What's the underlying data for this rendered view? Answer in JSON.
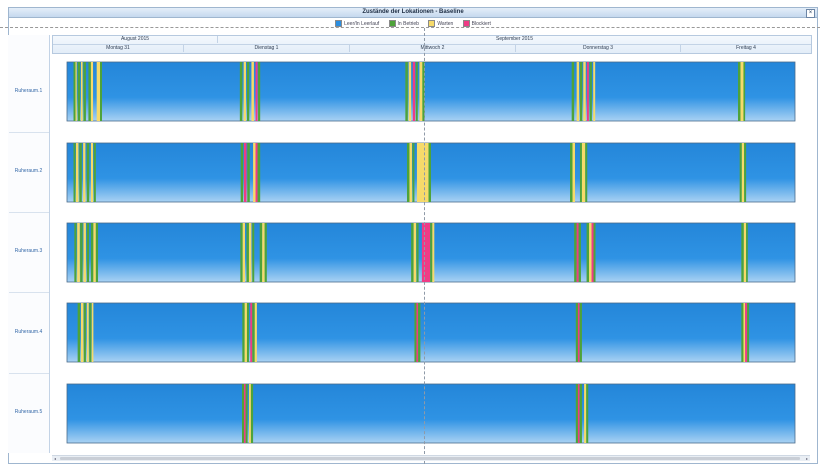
{
  "window": {
    "title": "Zustände der Lokationen - Baseline",
    "close_label": "×"
  },
  "legend": [
    {
      "label": "Leer/In Leerlauf",
      "color": "#2b8ee0"
    },
    {
      "label": "In Betrieb",
      "color": "#4ea33a"
    },
    {
      "label": "Warten",
      "color": "#f6da6a"
    },
    {
      "label": "Blockiert",
      "color": "#ef3b86"
    }
  ],
  "header": {
    "months": [
      "August 2015",
      "September 2015"
    ],
    "days": [
      "Montag 31",
      "Dienstag 1",
      "Mittwoch 2",
      "Donnerstag 3",
      "Freitag 4"
    ]
  },
  "scroll": {
    "left_arrow": "◂",
    "right_arrow": "▸"
  },
  "chart_data": {
    "type": "gantt",
    "title": "Zustände der Lokationen - Baseline",
    "x_unit": "Tag (Montag 31 = 0)",
    "x_range": [
      -0.13,
      4.45
    ],
    "states": [
      "Leer/In Leerlauf",
      "In Betrieb",
      "Warten",
      "Blockiert"
    ],
    "colors": {
      "Leer/In Leerlauf": "#2b8ee0",
      "In Betrieb": "#4ea33a",
      "Warten": "#f6da6a",
      "Blockiert": "#ef3b86"
    },
    "rows": [
      {
        "name": "Ruheraum.1",
        "segments": [
          [
            0.0,
            0.012,
            "In Betrieb"
          ],
          [
            0.012,
            0.018,
            "Warten"
          ],
          [
            0.025,
            0.04,
            "In Betrieb"
          ],
          [
            0.045,
            0.055,
            "Warten"
          ],
          [
            0.06,
            0.075,
            "In Betrieb"
          ],
          [
            0.09,
            0.105,
            "In Betrieb"
          ],
          [
            0.105,
            0.118,
            "Warten"
          ],
          [
            0.14,
            0.16,
            "Warten"
          ],
          [
            0.16,
            0.172,
            "In Betrieb"
          ],
          [
            1.005,
            1.02,
            "In Betrieb"
          ],
          [
            1.028,
            1.042,
            "Warten"
          ],
          [
            1.048,
            1.062,
            "In Betrieb"
          ],
          [
            1.075,
            1.09,
            "Warten"
          ],
          [
            1.1,
            1.112,
            "Blockiert"
          ],
          [
            1.115,
            1.128,
            "In Betrieb"
          ],
          [
            2.005,
            2.02,
            "In Betrieb"
          ],
          [
            2.025,
            2.04,
            "Warten"
          ],
          [
            2.05,
            2.064,
            "Blockiert"
          ],
          [
            2.068,
            2.08,
            "In Betrieb"
          ],
          [
            2.09,
            2.108,
            "Warten"
          ],
          [
            2.108,
            2.122,
            "In Betrieb"
          ],
          [
            3.01,
            3.025,
            "In Betrieb"
          ],
          [
            3.04,
            3.055,
            "Warten"
          ],
          [
            3.06,
            3.074,
            "In Betrieb"
          ],
          [
            3.08,
            3.095,
            "Warten"
          ],
          [
            3.102,
            3.114,
            "Blockiert"
          ],
          [
            3.118,
            3.132,
            "In Betrieb"
          ],
          [
            3.14,
            3.152,
            "Warten"
          ],
          [
            4.015,
            4.03,
            "In Betrieb"
          ],
          [
            4.03,
            4.048,
            "Warten"
          ],
          [
            4.048,
            4.058,
            "In Betrieb"
          ]
        ]
      },
      {
        "name": "Ruheraum.2",
        "segments": [
          [
            0.0,
            0.012,
            "In Betrieb"
          ],
          [
            0.015,
            0.03,
            "Warten"
          ],
          [
            0.035,
            0.05,
            "In Betrieb"
          ],
          [
            0.058,
            0.072,
            "Warten"
          ],
          [
            0.08,
            0.095,
            "In Betrieb"
          ],
          [
            0.105,
            0.118,
            "Warten"
          ],
          [
            0.122,
            0.135,
            "In Betrieb"
          ],
          [
            1.01,
            1.025,
            "In Betrieb"
          ],
          [
            1.03,
            1.045,
            "Blockiert"
          ],
          [
            1.05,
            1.065,
            "In Betrieb"
          ],
          [
            1.085,
            1.1,
            "Warten"
          ],
          [
            1.1,
            1.112,
            "Blockiert"
          ],
          [
            1.112,
            1.128,
            "In Betrieb"
          ],
          [
            2.015,
            2.03,
            "In Betrieb"
          ],
          [
            2.03,
            2.045,
            "Warten"
          ],
          [
            2.048,
            2.06,
            "In Betrieb"
          ],
          [
            2.075,
            2.145,
            "Warten"
          ],
          [
            2.145,
            2.16,
            "In Betrieb"
          ],
          [
            3.0,
            3.015,
            "In Betrieb"
          ],
          [
            3.015,
            3.03,
            "Warten"
          ],
          [
            3.06,
            3.072,
            "In Betrieb"
          ],
          [
            3.072,
            3.092,
            "Warten"
          ],
          [
            3.092,
            3.104,
            "In Betrieb"
          ],
          [
            4.025,
            4.038,
            "In Betrieb"
          ],
          [
            4.038,
            4.052,
            "Warten"
          ],
          [
            4.052,
            4.064,
            "In Betrieb"
          ]
        ]
      },
      {
        "name": "Ruheraum.3",
        "segments": [
          [
            0.005,
            0.018,
            "In Betrieb"
          ],
          [
            0.022,
            0.038,
            "Warten"
          ],
          [
            0.04,
            0.055,
            "In Betrieb"
          ],
          [
            0.06,
            0.075,
            "Warten"
          ],
          [
            0.08,
            0.094,
            "In Betrieb"
          ],
          [
            0.105,
            0.12,
            "In Betrieb"
          ],
          [
            0.12,
            0.135,
            "Warten"
          ],
          [
            0.135,
            0.148,
            "In Betrieb"
          ],
          [
            1.008,
            1.022,
            "In Betrieb"
          ],
          [
            1.022,
            1.036,
            "Warten"
          ],
          [
            1.045,
            1.06,
            "In Betrieb"
          ],
          [
            1.06,
            1.075,
            "Warten"
          ],
          [
            1.08,
            1.092,
            "In Betrieb"
          ],
          [
            1.125,
            1.14,
            "In Betrieb"
          ],
          [
            1.14,
            1.155,
            "Warten"
          ],
          [
            1.155,
            1.168,
            "In Betrieb"
          ],
          [
            2.04,
            2.055,
            "In Betrieb"
          ],
          [
            2.055,
            2.07,
            "Warten"
          ],
          [
            2.072,
            2.085,
            "In Betrieb"
          ],
          [
            2.105,
            2.155,
            "Blockiert"
          ],
          [
            2.155,
            2.168,
            "In Betrieb"
          ],
          [
            2.168,
            2.18,
            "Warten"
          ],
          [
            3.025,
            3.04,
            "In Betrieb"
          ],
          [
            3.04,
            3.052,
            "Blockiert"
          ],
          [
            3.052,
            3.066,
            "In Betrieb"
          ],
          [
            3.1,
            3.115,
            "In Betrieb"
          ],
          [
            3.115,
            3.13,
            "Warten"
          ],
          [
            3.13,
            3.142,
            "Blockiert"
          ],
          [
            3.142,
            3.154,
            "In Betrieb"
          ],
          [
            4.035,
            4.05,
            "In Betrieb"
          ],
          [
            4.05,
            4.064,
            "Warten"
          ],
          [
            4.064,
            4.074,
            "In Betrieb"
          ]
        ]
      },
      {
        "name": "Ruheraum.4",
        "segments": [
          [
            0.025,
            0.04,
            "In Betrieb"
          ],
          [
            0.045,
            0.06,
            "Warten"
          ],
          [
            0.062,
            0.075,
            "In Betrieb"
          ],
          [
            0.08,
            0.092,
            "Warten"
          ],
          [
            0.095,
            0.108,
            "In Betrieb"
          ],
          [
            0.11,
            0.12,
            "Warten"
          ],
          [
            1.02,
            1.034,
            "In Betrieb"
          ],
          [
            1.034,
            1.048,
            "Warten"
          ],
          [
            1.048,
            1.06,
            "In Betrieb"
          ],
          [
            1.068,
            1.08,
            "Blockiert"
          ],
          [
            1.08,
            1.095,
            "In Betrieb"
          ],
          [
            1.095,
            1.108,
            "Warten"
          ],
          [
            2.06,
            2.072,
            "In Betrieb"
          ],
          [
            2.072,
            2.082,
            "Blockiert"
          ],
          [
            2.082,
            2.096,
            "In Betrieb"
          ],
          [
            3.035,
            3.048,
            "In Betrieb"
          ],
          [
            3.048,
            3.058,
            "Blockiert"
          ],
          [
            3.058,
            3.072,
            "In Betrieb"
          ],
          [
            4.035,
            4.048,
            "In Betrieb"
          ],
          [
            4.048,
            4.058,
            "Warten"
          ],
          [
            4.058,
            4.07,
            "Blockiert"
          ],
          [
            4.07,
            4.082,
            "In Betrieb"
          ]
        ]
      },
      {
        "name": "Ruheraum.5",
        "segments": [
          [
            1.018,
            1.03,
            "In Betrieb"
          ],
          [
            1.03,
            1.04,
            "Blockiert"
          ],
          [
            1.04,
            1.052,
            "In Betrieb"
          ],
          [
            1.06,
            1.072,
            "Warten"
          ],
          [
            1.072,
            1.085,
            "In Betrieb"
          ],
          [
            3.035,
            3.048,
            "In Betrieb"
          ],
          [
            3.048,
            3.058,
            "Blockiert"
          ],
          [
            3.058,
            3.072,
            "In Betrieb"
          ],
          [
            3.085,
            3.098,
            "Warten"
          ],
          [
            3.098,
            3.11,
            "In Betrieb"
          ]
        ]
      }
    ]
  }
}
